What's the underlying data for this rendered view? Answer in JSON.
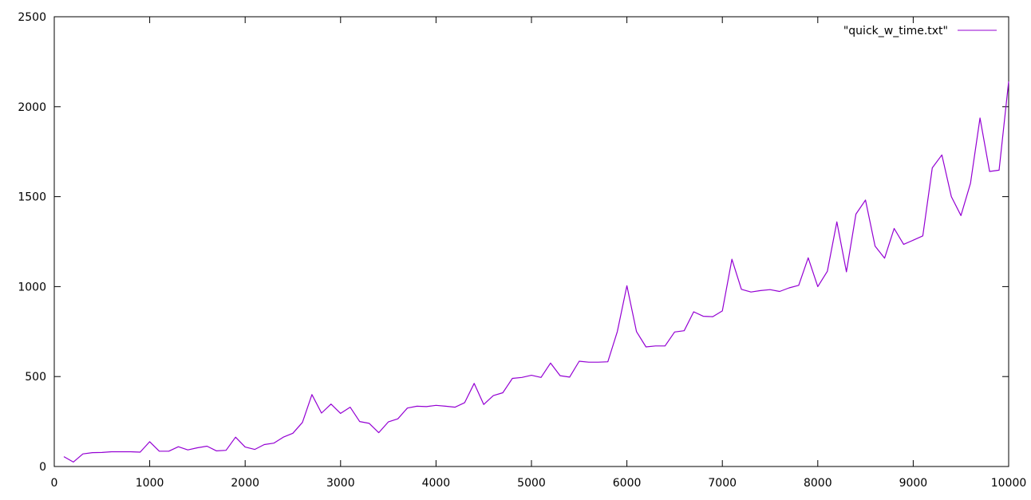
{
  "chart_data": {
    "type": "line",
    "title": "",
    "xlabel": "",
    "ylabel": "",
    "xlim": [
      0,
      10000
    ],
    "ylim": [
      0,
      2500
    ],
    "grid": false,
    "legend_position": "top-right",
    "x_ticks": [
      0,
      1000,
      2000,
      3000,
      4000,
      5000,
      6000,
      7000,
      8000,
      9000,
      10000
    ],
    "y_ticks": [
      0,
      500,
      1000,
      1500,
      2000,
      2500
    ],
    "series": [
      {
        "name": "\"quick_w_time.txt\"",
        "color": "#9400d3",
        "x": [
          100,
          200,
          300,
          400,
          500,
          600,
          700,
          800,
          900,
          1000,
          1100,
          1200,
          1300,
          1400,
          1500,
          1600,
          1700,
          1800,
          1900,
          2000,
          2100,
          2200,
          2300,
          2400,
          2500,
          2600,
          2700,
          2800,
          2900,
          3000,
          3100,
          3200,
          3300,
          3400,
          3500,
          3600,
          3700,
          3800,
          3900,
          4000,
          4100,
          4200,
          4300,
          4400,
          4500,
          4600,
          4700,
          4800,
          4900,
          5000,
          5100,
          5200,
          5300,
          5400,
          5500,
          5600,
          5700,
          5800,
          5900,
          6000,
          6100,
          6200,
          6300,
          6400,
          6500,
          6600,
          6700,
          6800,
          6900,
          7000,
          7100,
          7200,
          7300,
          7400,
          7500,
          7600,
          7700,
          7800,
          7900,
          8000,
          8100,
          8200,
          8300,
          8400,
          8500,
          8600,
          8700,
          8800,
          8900,
          9000,
          9100,
          9200,
          9300,
          9400,
          9500,
          9600,
          9700,
          9800,
          9900,
          10000
        ],
        "y": [
          55,
          25,
          70,
          77,
          78,
          82,
          82,
          82,
          80,
          138,
          85,
          85,
          110,
          92,
          104,
          113,
          87,
          90,
          163,
          108,
          95,
          122,
          130,
          163,
          185,
          245,
          400,
          297,
          347,
          295,
          330,
          250,
          240,
          188,
          248,
          265,
          325,
          335,
          333,
          340,
          335,
          330,
          355,
          462,
          345,
          394,
          410,
          490,
          495,
          507,
          495,
          575,
          505,
          497,
          585,
          580,
          580,
          582,
          750,
          1005,
          750,
          665,
          670,
          670,
          748,
          755,
          860,
          835,
          833,
          865,
          1152,
          985,
          970,
          978,
          983,
          973,
          993,
          1007,
          1160,
          1000,
          1085,
          1360,
          1082,
          1403,
          1481,
          1225,
          1158,
          1323,
          1235,
          1258,
          1282,
          1660,
          1732,
          1500,
          1395,
          1575,
          1937,
          1640,
          1647,
          2140
        ]
      }
    ]
  }
}
